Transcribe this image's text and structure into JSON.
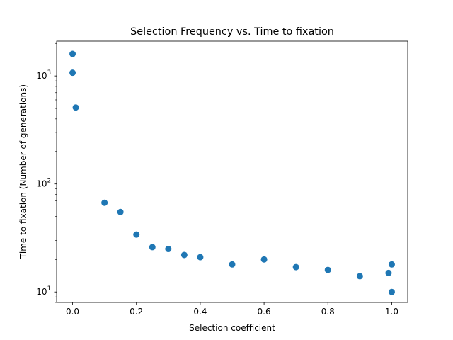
{
  "chart_data": {
    "type": "scatter",
    "title": "Selection Frequency vs. Time to fixation",
    "xlabel": "Selection coefficient",
    "ylabel": "Time to fixation (Number of generations)",
    "xlim": [
      -0.05,
      1.05
    ],
    "ylim": [
      8,
      2100
    ],
    "yscale": "log",
    "grid": false,
    "x_ticks": [
      {
        "value": 0.0,
        "label": "0.0"
      },
      {
        "value": 0.2,
        "label": "0.2"
      },
      {
        "value": 0.4,
        "label": "0.4"
      },
      {
        "value": 0.6,
        "label": "0.6"
      },
      {
        "value": 0.8,
        "label": "0.8"
      },
      {
        "value": 1.0,
        "label": "1.0"
      }
    ],
    "y_ticks": [
      {
        "value": 10,
        "base": "10",
        "exp": "1"
      },
      {
        "value": 100,
        "base": "10",
        "exp": "2"
      },
      {
        "value": 1000,
        "base": "10",
        "exp": "3"
      }
    ],
    "color": "#1f77b4",
    "points": [
      {
        "x": 0.0,
        "y": 1600
      },
      {
        "x": 0.0,
        "y": 1070
      },
      {
        "x": 0.01,
        "y": 510
      },
      {
        "x": 0.1,
        "y": 67
      },
      {
        "x": 0.15,
        "y": 55
      },
      {
        "x": 0.2,
        "y": 34
      },
      {
        "x": 0.25,
        "y": 26
      },
      {
        "x": 0.3,
        "y": 25
      },
      {
        "x": 0.35,
        "y": 22
      },
      {
        "x": 0.4,
        "y": 21
      },
      {
        "x": 0.5,
        "y": 18
      },
      {
        "x": 0.6,
        "y": 20
      },
      {
        "x": 0.7,
        "y": 17
      },
      {
        "x": 0.8,
        "y": 16
      },
      {
        "x": 0.9,
        "y": 14
      },
      {
        "x": 0.99,
        "y": 15
      },
      {
        "x": 1.0,
        "y": 18
      },
      {
        "x": 1.0,
        "y": 10
      }
    ]
  }
}
